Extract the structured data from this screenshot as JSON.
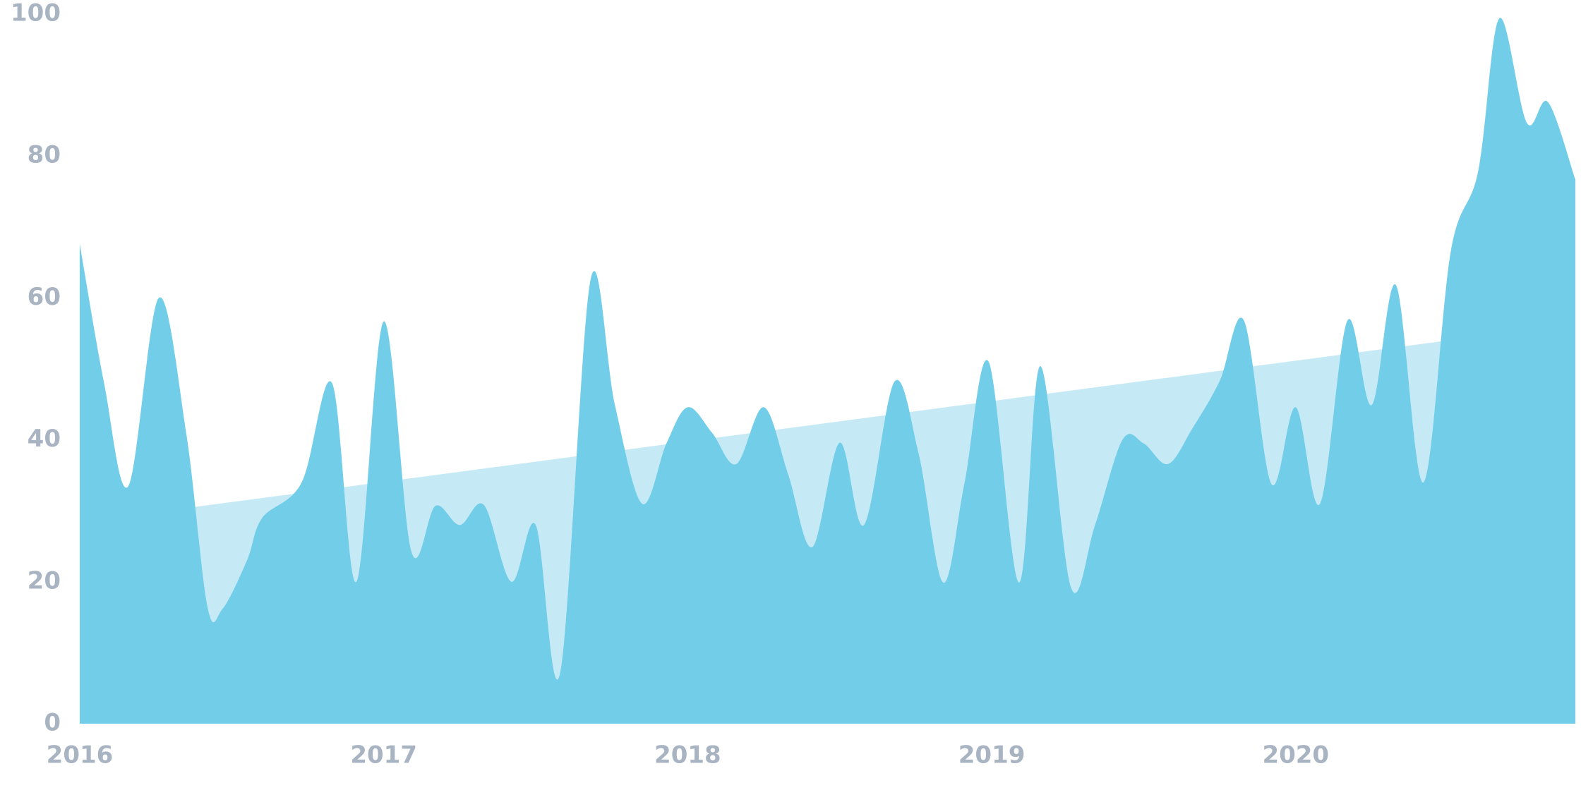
{
  "chart_data": {
    "type": "area",
    "series": [
      {
        "color": "#c6eaf5",
        "x": [
          2016.37,
          2020.5
        ],
        "values": [
          30.5,
          54
        ]
      },
      {
        "color": "#72cde9",
        "x": [
          2016.0,
          2016.08,
          2016.16,
          2016.26,
          2016.35,
          2016.42,
          2016.47,
          2016.55,
          2016.6,
          2016.73,
          2016.83,
          2016.91,
          2017.0,
          2017.09,
          2017.17,
          2017.25,
          2017.33,
          2017.42,
          2017.5,
          2017.58,
          2017.68,
          2017.76,
          2017.85,
          2017.93,
          2018.0,
          2018.08,
          2018.16,
          2018.25,
          2018.33,
          2018.41,
          2018.5,
          2018.58,
          2018.68,
          2018.76,
          2018.84,
          2018.91,
          2018.99,
          2019.09,
          2019.16,
          2019.26,
          2019.34,
          2019.43,
          2019.5,
          2019.58,
          2019.66,
          2019.75,
          2019.83,
          2019.92,
          2020.0,
          2020.08,
          2020.17,
          2020.25,
          2020.33,
          2020.42,
          2020.51,
          2020.6,
          2020.67,
          2020.76,
          2020.83,
          2020.92
        ],
        "values": [
          67.6,
          48,
          33.5,
          60,
          41,
          16.5,
          16.2,
          23,
          29,
          34,
          48,
          20,
          56.7,
          24.4,
          30.7,
          28,
          30.8,
          20,
          28,
          7.1,
          62.5,
          45,
          31,
          39.5,
          44.6,
          41,
          36.6,
          44.6,
          35.2,
          24.9,
          39.6,
          28,
          48.2,
          38,
          19.9,
          33.8,
          51,
          19.9,
          50.4,
          19.3,
          28,
          40,
          39.5,
          36.6,
          41.6,
          48.3,
          56.8,
          33.8,
          44.6,
          31,
          56.8,
          44.9,
          61.8,
          34,
          66.5,
          77.8,
          99.4,
          84.7,
          87.6,
          76.7
        ]
      }
    ],
    "xlim": [
      2016,
      2020.92
    ],
    "xticks": [
      2016,
      2017,
      2018,
      2019,
      2020
    ],
    "ylim": [
      0,
      100
    ],
    "yticks": [
      0,
      20,
      40,
      60,
      80,
      100
    ]
  }
}
